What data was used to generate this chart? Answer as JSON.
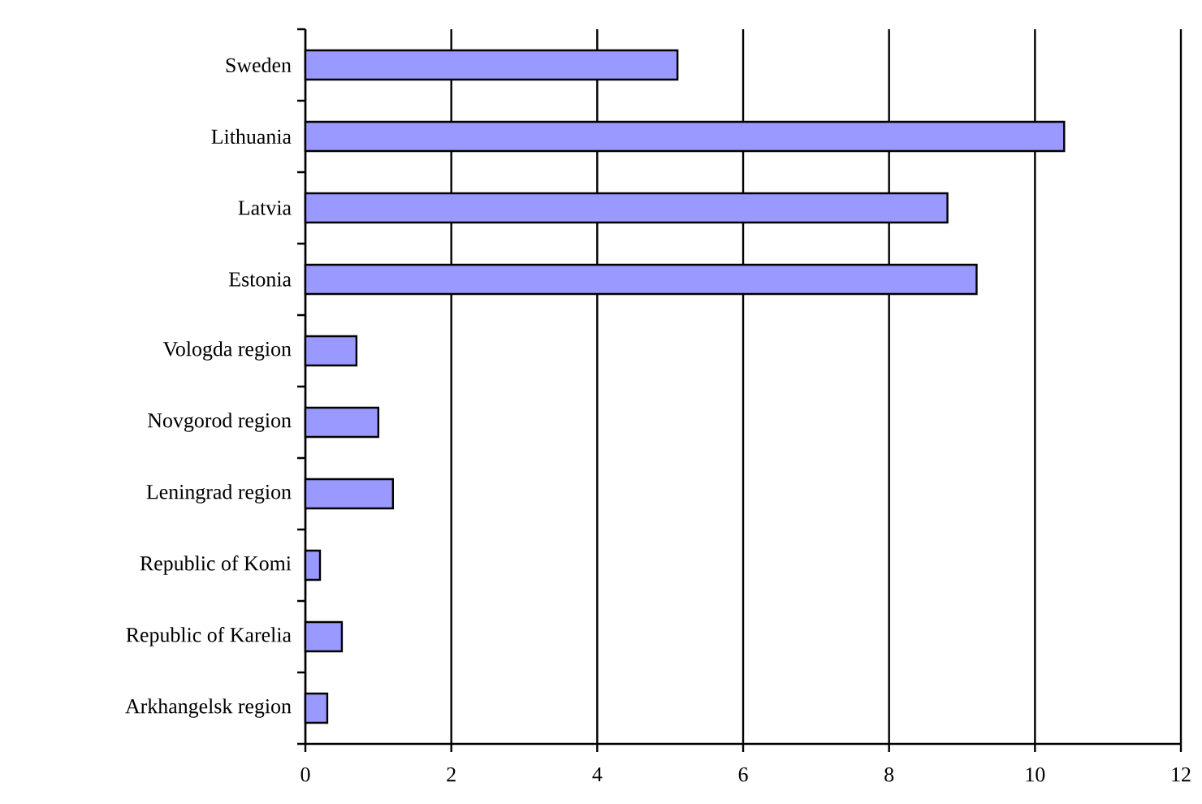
{
  "chart_data": {
    "type": "bar",
    "orientation": "horizontal",
    "categories": [
      "Sweden",
      "Lithuania",
      "Latvia",
      "Estonia",
      "Vologda region",
      "Novgorod region",
      "Leningrad region",
      "Republic of Komi",
      "Republic of Karelia",
      "Arkhangelsk region"
    ],
    "values": [
      5.1,
      10.4,
      8.8,
      9.2,
      0.7,
      1.0,
      1.2,
      0.2,
      0.5,
      0.3
    ],
    "color": "#9999ff",
    "xlim": [
      0,
      12
    ],
    "xticks": [
      0,
      2,
      4,
      6,
      8,
      10,
      12
    ],
    "grid": "x"
  }
}
